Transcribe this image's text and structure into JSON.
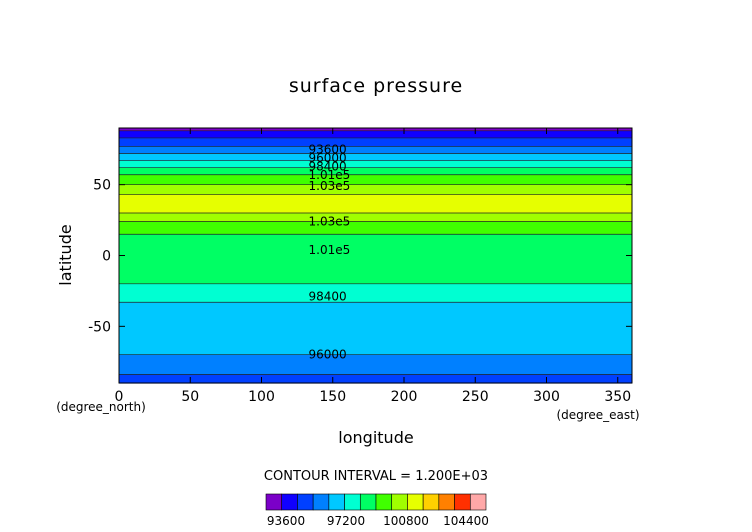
{
  "chart_data": {
    "type": "contour",
    "title": "surface pressure",
    "xlabel": "longitude",
    "ylabel": "latitude",
    "x_unit": "(degree_east)",
    "y_unit": "(degree_north)",
    "xlim": [
      0,
      360
    ],
    "ylim": [
      -90,
      90
    ],
    "x_ticks": [
      0,
      50,
      100,
      150,
      200,
      250,
      300,
      350
    ],
    "y_ticks": [
      -50,
      0,
      50
    ],
    "contour_interval_text": "CONTOUR INTERVAL = 1.200E+03",
    "colorbar": {
      "min": 92400,
      "max": 105600,
      "step": 1200,
      "tick_labels": [
        "93600",
        "97200",
        "100800",
        "104400"
      ],
      "tick_values": [
        93600,
        97200,
        100800,
        104400
      ],
      "colors": [
        "#7b00c8",
        "#1000ff",
        "#0040ff",
        "#0080ff",
        "#00c8ff",
        "#00ffd2",
        "#00ff64",
        "#40ff00",
        "#a0ff00",
        "#e6ff00",
        "#ffd000",
        "#ff8000",
        "#ff3000",
        "#ffa8a8"
      ]
    },
    "bands": [
      {
        "level": 92400,
        "lat": [
          88,
          90
        ]
      },
      {
        "level": 93600,
        "lat": [
          83,
          88
        ]
      },
      {
        "level": 94800,
        "lat": [
          77,
          83
        ]
      },
      {
        "level": 96000,
        "lat": [
          72,
          77
        ]
      },
      {
        "level": 97200,
        "lat": [
          67,
          72
        ]
      },
      {
        "level": 98400,
        "lat": [
          62,
          67
        ]
      },
      {
        "level": 99600,
        "lat": [
          57,
          62
        ]
      },
      {
        "level": 100800,
        "lat": [
          50,
          57
        ]
      },
      {
        "level": 102000,
        "lat": [
          43,
          50
        ]
      },
      {
        "level": 103200,
        "lat": [
          30,
          43
        ]
      },
      {
        "level": 102000,
        "lat": [
          24,
          30
        ]
      },
      {
        "level": 100800,
        "lat": [
          15,
          24
        ]
      },
      {
        "level": 99600,
        "lat": [
          -20,
          15
        ]
      },
      {
        "level": 98400,
        "lat": [
          -33,
          -20
        ]
      },
      {
        "level": 97200,
        "lat": [
          -70,
          -33
        ]
      },
      {
        "level": 96000,
        "lat": [
          -84,
          -70
        ]
      },
      {
        "level": 94800,
        "lat": [
          -90,
          -84
        ]
      }
    ],
    "contour_labels": [
      {
        "text": "93600",
        "lon": 133,
        "lat": 75
      },
      {
        "text": "96000",
        "lon": 133,
        "lat": 69
      },
      {
        "text": "98400",
        "lon": 133,
        "lat": 63
      },
      {
        "text": "1.01e5",
        "lon": 133,
        "lat": 57
      },
      {
        "text": "1.03e5",
        "lon": 133,
        "lat": 49
      },
      {
        "text": "1.03e5",
        "lon": 133,
        "lat": 24
      },
      {
        "text": "1.01e5",
        "lon": 133,
        "lat": 4
      },
      {
        "text": "98400",
        "lon": 133,
        "lat": -29
      },
      {
        "text": "96000",
        "lon": 133,
        "lat": -70
      }
    ]
  }
}
